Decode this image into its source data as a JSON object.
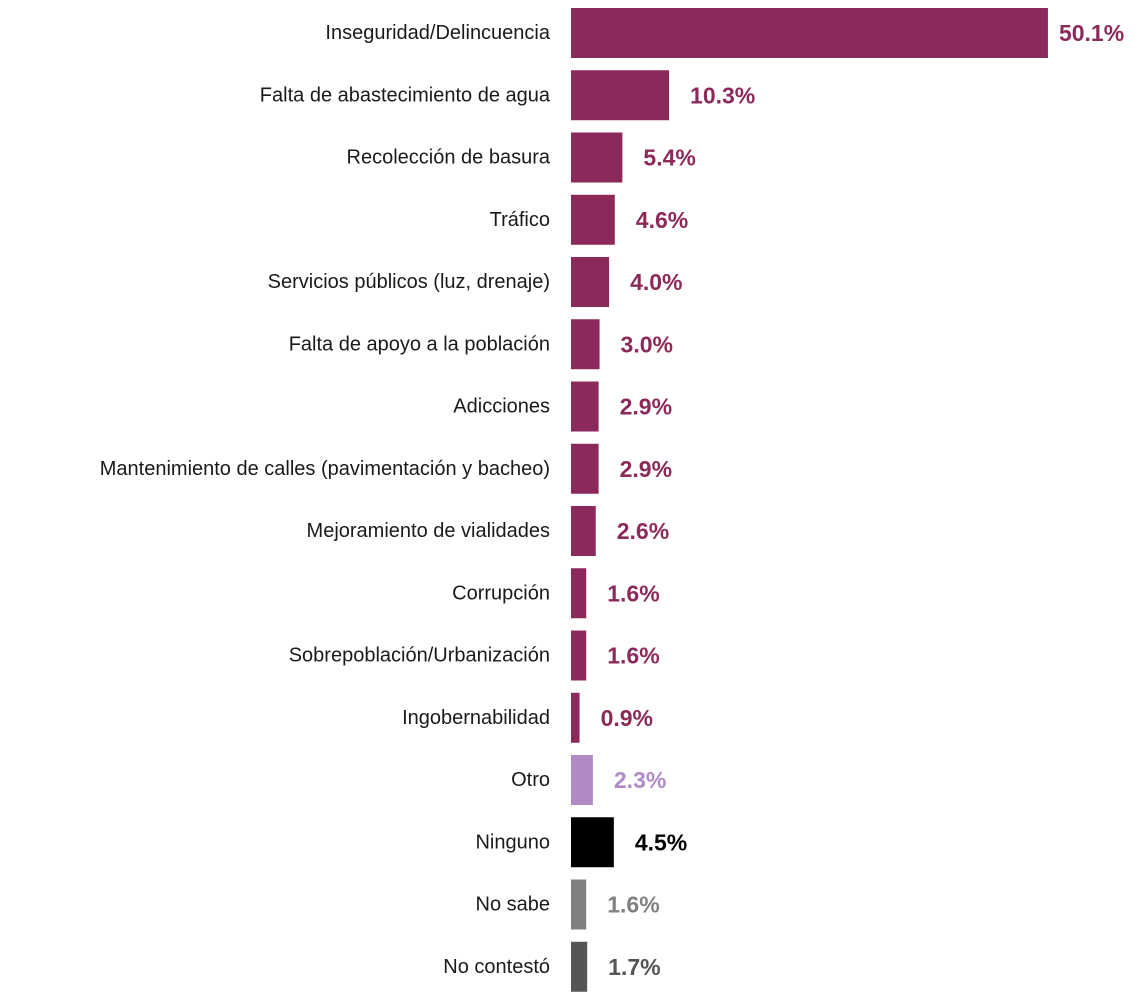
{
  "chart_data": {
    "type": "bar",
    "orientation": "horizontal",
    "title": "",
    "xlabel": "",
    "ylabel": "",
    "grid": false,
    "categories": [
      "Inseguridad/Delincuencia",
      "Falta de abastecimiento de agua",
      "Recolección de basura",
      "Tráfico",
      "Servicios públicos (luz, drenaje)",
      "Falta de apoyo a la población",
      "Adicciones",
      "Mantenimiento de calles (pavimentación y bacheo)",
      "Mejoramiento de vialidades",
      "Corrupción",
      "Sobrepoblación/Urbanización",
      "Ingobernabilidad",
      "Otro",
      "Ninguno",
      "No sabe",
      "No contestó"
    ],
    "values": [
      50.1,
      10.3,
      5.4,
      4.6,
      4.0,
      3.0,
      2.9,
      2.9,
      2.6,
      1.6,
      1.6,
      0.9,
      2.3,
      4.5,
      1.6,
      1.7
    ],
    "value_labels": [
      "50.1%",
      "10.3%",
      "5.4%",
      "4.6%",
      "4.0%",
      "3.0%",
      "2.9%",
      "2.9%",
      "2.6%",
      "1.6%",
      "1.6%",
      "0.9%",
      "2.3%",
      "4.5%",
      "1.6%",
      "1.7%"
    ],
    "bar_colors": [
      "#8b2a5a",
      "#8b2a5a",
      "#8b2a5a",
      "#8b2a5a",
      "#8b2a5a",
      "#8b2a5a",
      "#8b2a5a",
      "#8b2a5a",
      "#8b2a5a",
      "#8b2a5a",
      "#8b2a5a",
      "#8b2a5a",
      "#b08ac6",
      "#000000",
      "#808080",
      "#555555"
    ],
    "label_colors": [
      "#8b2a5a",
      "#8b2a5a",
      "#8b2a5a",
      "#8b2a5a",
      "#8b2a5a",
      "#8b2a5a",
      "#8b2a5a",
      "#8b2a5a",
      "#8b2a5a",
      "#8b2a5a",
      "#8b2a5a",
      "#8b2a5a",
      "#b08ac6",
      "#000000",
      "#808080",
      "#555555"
    ]
  }
}
